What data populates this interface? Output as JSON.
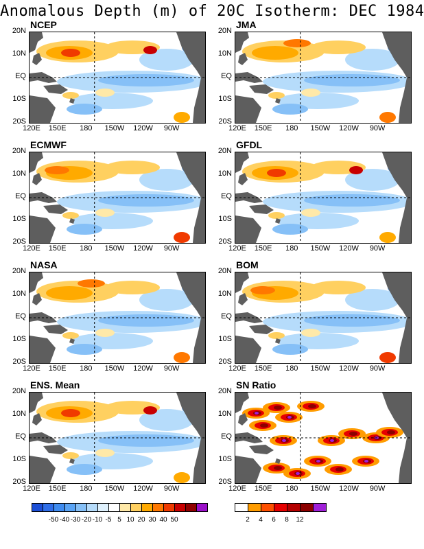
{
  "title": "Anomalous Depth (m) of 20C Isotherm: DEC 1984",
  "lat_labels": [
    "20N",
    "10N",
    "EQ",
    "10S",
    "20S"
  ],
  "lon_labels": [
    "120E",
    "150E",
    "180",
    "150W",
    "120W",
    "90W"
  ],
  "panels": [
    {
      "name": "NCEP",
      "type": "anomaly"
    },
    {
      "name": "JMA",
      "type": "anomaly"
    },
    {
      "name": "ECMWF",
      "type": "anomaly"
    },
    {
      "name": "GFDL",
      "type": "anomaly"
    },
    {
      "name": "NASA",
      "type": "anomaly"
    },
    {
      "name": "BOM",
      "type": "anomaly"
    },
    {
      "name": "ENS. Mean",
      "type": "anomaly"
    },
    {
      "name": "SN Ratio",
      "type": "ratio"
    }
  ],
  "anomaly_colorbar": {
    "colors": [
      "#1c4fd6",
      "#2f6ee8",
      "#3f8cf0",
      "#5aa4f5",
      "#86c0f7",
      "#b6dcfb",
      "#dff1fd",
      "#ffffff",
      "#ffe9a8",
      "#ffd060",
      "#ffaa00",
      "#ff7800",
      "#f03a00",
      "#c80000",
      "#900000",
      "#9a10c8"
    ],
    "labels": [
      "-50",
      "-40",
      "-30",
      "-20",
      "-10",
      "-5",
      "5",
      "10",
      "20",
      "30",
      "40",
      "50"
    ]
  },
  "ratio_colorbar": {
    "colors": [
      "#ffffff",
      "#ff9c00",
      "#ff5000",
      "#e60000",
      "#b40000",
      "#8c0000",
      "#a020d8"
    ],
    "labels": [
      "2",
      "4",
      "6",
      "8",
      "12"
    ]
  },
  "colors": {
    "land": "#5e5e5e",
    "frame": "#000000"
  }
}
